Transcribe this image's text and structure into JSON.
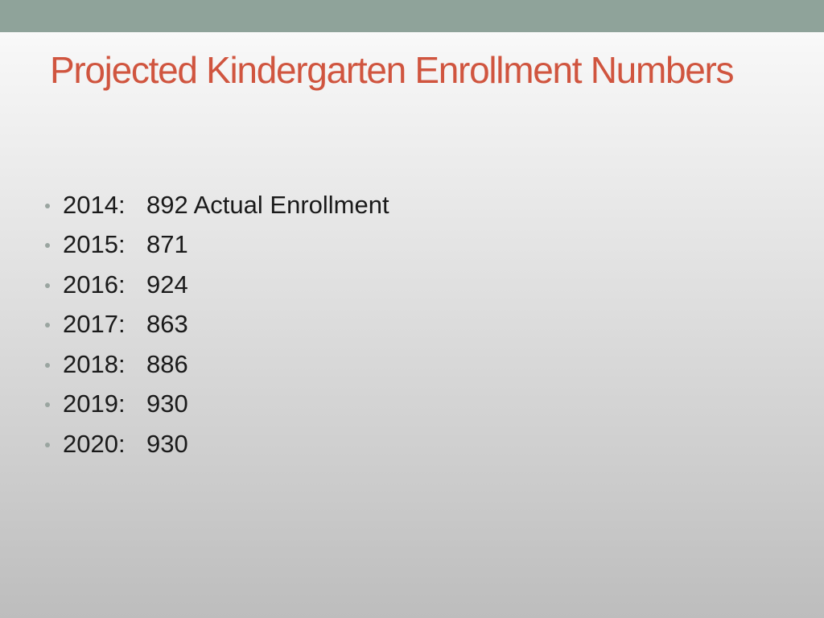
{
  "colors": {
    "top_band": "#8fa39a",
    "title": "#d0553f",
    "bullet": "#9aa5a0"
  },
  "slide": {
    "title": "Projected Kindergarten Enrollment Numbers",
    "items": [
      {
        "year": "2014:",
        "value": "892 Actual Enrollment"
      },
      {
        "year": "2015:",
        "value": "871"
      },
      {
        "year": "2016:",
        "value": "924"
      },
      {
        "year": "2017:",
        "value": "863"
      },
      {
        "year": "2018:",
        "value": "886"
      },
      {
        "year": "2019:",
        "value": "930"
      },
      {
        "year": "2020:",
        "value": "930"
      }
    ]
  }
}
